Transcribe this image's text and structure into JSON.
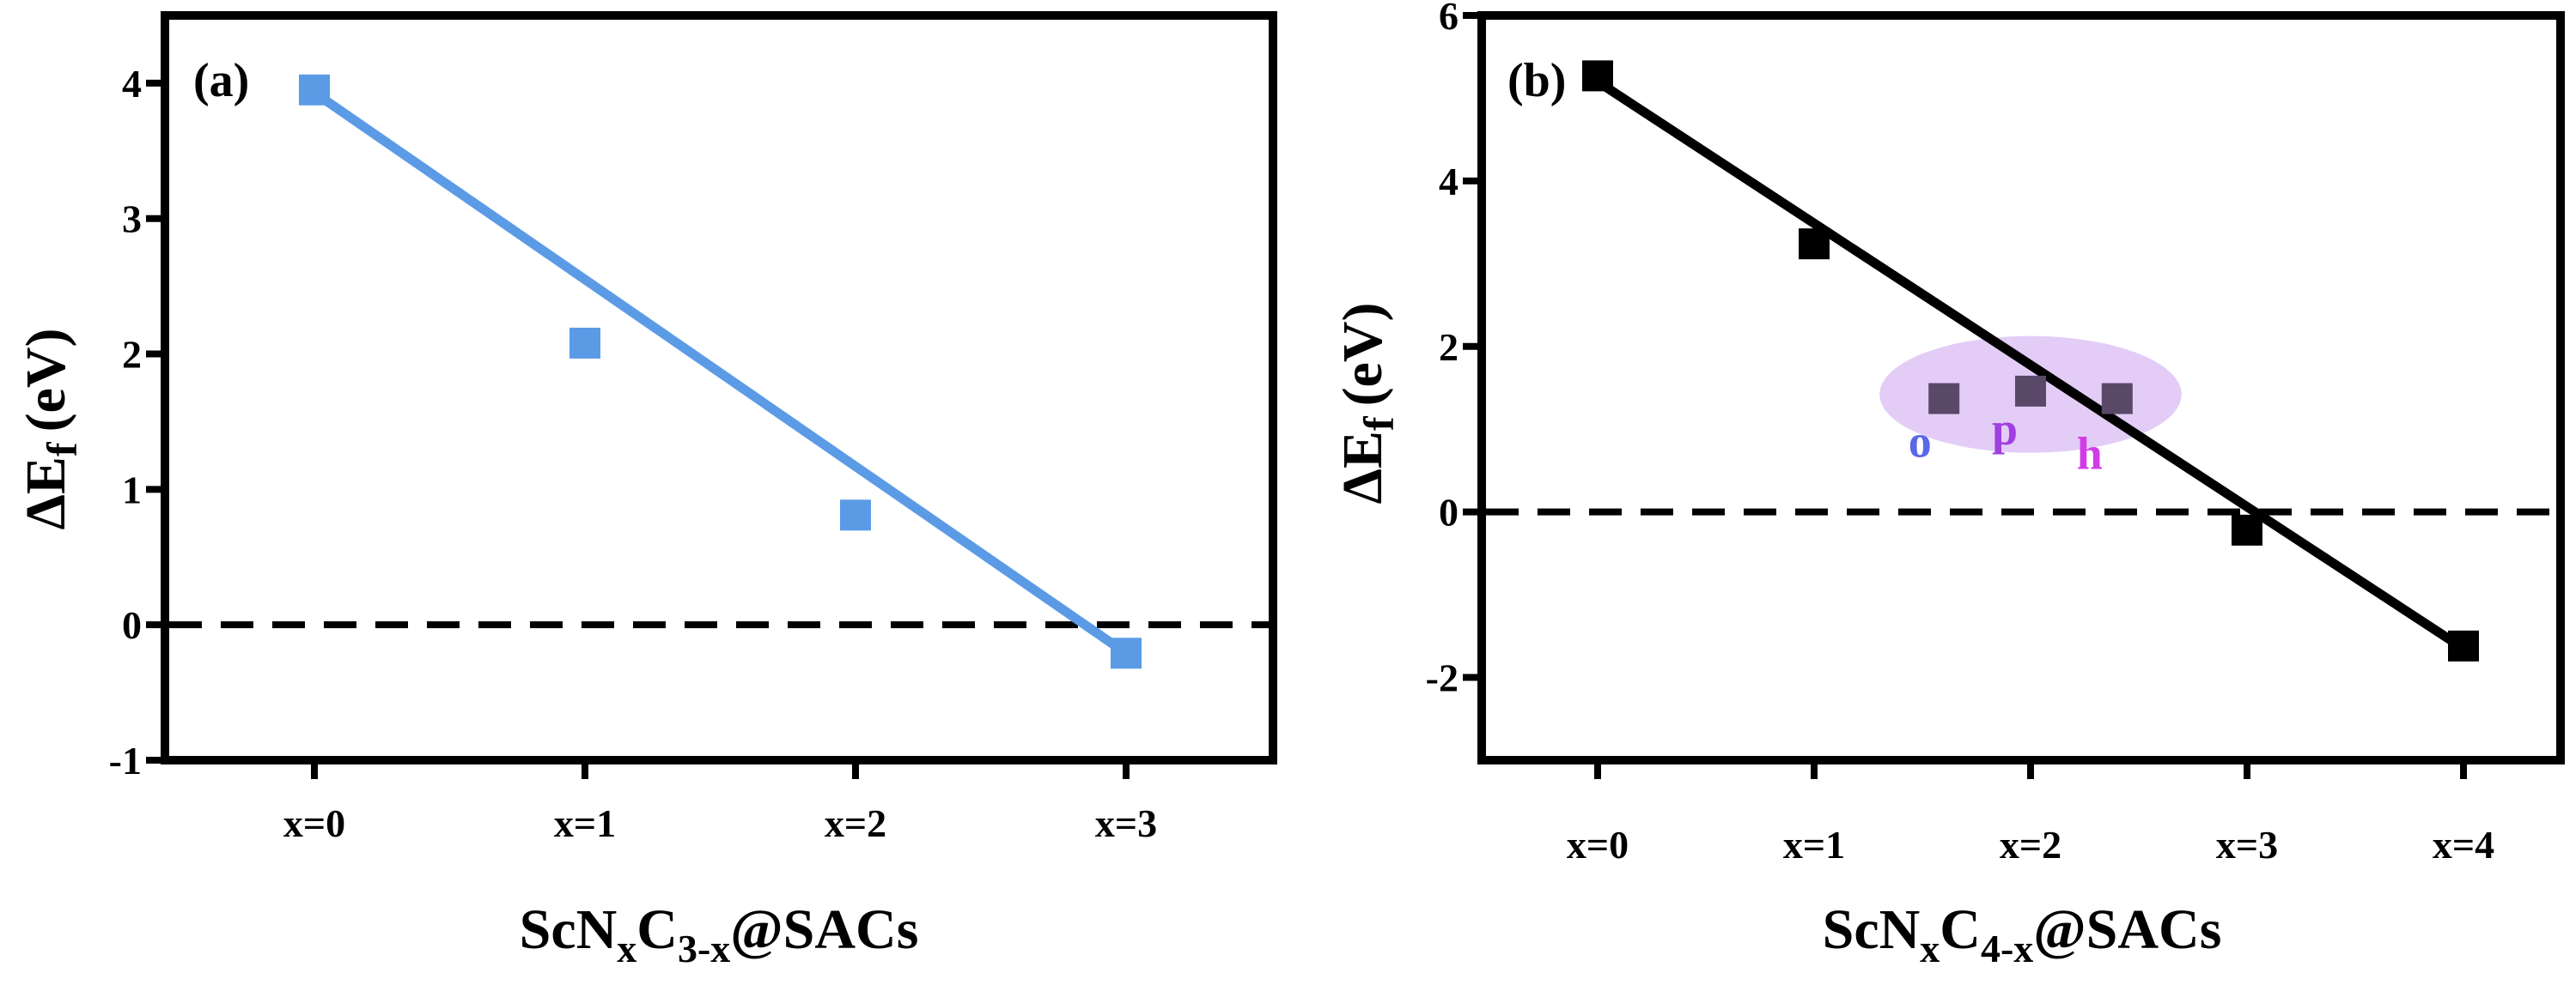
{
  "chart_data": [
    {
      "panel_label": "(a)",
      "type": "scatter",
      "x": [
        "x=0",
        "x=1",
        "x=2",
        "x=3"
      ],
      "values": [
        3.95,
        2.08,
        0.81,
        -0.21
      ],
      "marker_color": "#5b9be6",
      "fit_line": {
        "x": [
          "x=0",
          "x=3"
        ],
        "y": [
          3.93,
          -0.21
        ],
        "color": "#5b9be6"
      },
      "reference_line_y": 0,
      "ylim": [
        -1,
        4.5
      ],
      "yticks": [
        "-1",
        "0",
        "1",
        "2",
        "3",
        "4"
      ],
      "ylabel_parts": {
        "main": "ΔE",
        "sub": "f",
        "unit": "(eV)"
      },
      "xlabel_parts": {
        "a": "ScN",
        "sub1": "x",
        "b": "C",
        "sub2": "3-x",
        "c": "@SACs"
      },
      "grid": false
    },
    {
      "panel_label": "(b)",
      "type": "scatter",
      "x": [
        "x=0",
        "x=1",
        "x=2",
        "x=3",
        "x=4"
      ],
      "values": [
        5.27,
        3.24,
        null,
        -0.22,
        -1.62
      ],
      "marker_color": "#000000",
      "isomers": [
        {
          "label": "o",
          "x": 1.6,
          "value": 1.37,
          "color": "#5a67e8"
        },
        {
          "label": "p",
          "x": 2.0,
          "value": 1.46,
          "color": "#a23fe0"
        },
        {
          "label": "h",
          "x": 2.4,
          "value": 1.37,
          "color": "#d23be8"
        }
      ],
      "isomer_marker_color": "#5a4868",
      "highlight_color": "#c89cf0",
      "fit_line": {
        "x": [
          "x=0",
          "x=4"
        ],
        "y": [
          5.2,
          -1.65
        ],
        "color": "#000000"
      },
      "reference_line_y": 0,
      "ylim": [
        -3,
        6
      ],
      "yticks": [
        "-2",
        "0",
        "2",
        "4",
        "6"
      ],
      "ylabel_parts": {
        "main": "ΔE",
        "sub": "f",
        "unit": "(eV)"
      },
      "xlabel_parts": {
        "a": "ScN",
        "sub1": "x",
        "b": "C",
        "sub2": "4-x",
        "c": "@SACs"
      },
      "grid": false
    }
  ]
}
